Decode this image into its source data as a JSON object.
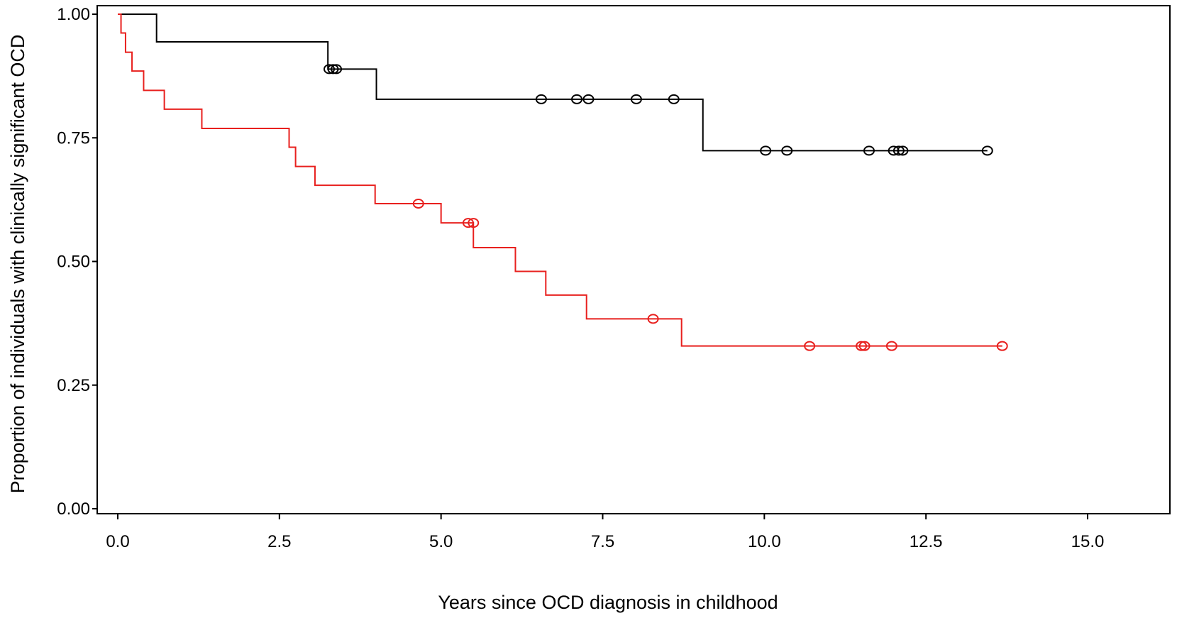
{
  "chart_data": {
    "type": "line",
    "title": "",
    "xlabel": "Years since OCD diagnosis in childhood",
    "ylabel": "Proportion of individuals with clinically significant OCD",
    "xlim": [
      0,
      15
    ],
    "ylim": [
      0,
      1
    ],
    "x_ticks": [
      0,
      2.5,
      5,
      7.5,
      10,
      12.5,
      15
    ],
    "x_tick_labels": [
      "0.0",
      "2.5",
      "5.0",
      "7.5",
      "10.0",
      "12.5",
      "15.0"
    ],
    "y_ticks": [
      0,
      0.25,
      0.5,
      0.75,
      1
    ],
    "y_tick_labels": [
      "0.00",
      "0.25",
      "0.50",
      "0.75",
      "1.00"
    ],
    "grid": false,
    "legend": "none",
    "series": [
      {
        "color": "#000000",
        "steps": [
          [
            0,
            1.0
          ],
          [
            0.6,
            0.944
          ],
          [
            3.25,
            0.889
          ],
          [
            4.0,
            0.828
          ],
          [
            9.05,
            0.724
          ],
          [
            13.45,
            0.724
          ]
        ],
        "censored": [
          [
            3.27,
            0.889
          ],
          [
            3.33,
            0.889
          ],
          [
            3.38,
            0.889
          ],
          [
            6.55,
            0.828
          ],
          [
            7.1,
            0.828
          ],
          [
            7.28,
            0.828
          ],
          [
            8.02,
            0.828
          ],
          [
            8.6,
            0.828
          ],
          [
            10.02,
            0.724
          ],
          [
            10.35,
            0.724
          ],
          [
            11.62,
            0.724
          ],
          [
            12.0,
            0.724
          ],
          [
            12.08,
            0.724
          ],
          [
            12.14,
            0.724
          ],
          [
            13.45,
            0.724
          ]
        ]
      },
      {
        "color": "#e8201e",
        "steps": [
          [
            0,
            1.0
          ],
          [
            0.05,
            0.962
          ],
          [
            0.12,
            0.923
          ],
          [
            0.22,
            0.885
          ],
          [
            0.4,
            0.846
          ],
          [
            0.72,
            0.808
          ],
          [
            1.3,
            0.769
          ],
          [
            2.65,
            0.731
          ],
          [
            2.75,
            0.692
          ],
          [
            3.05,
            0.654
          ],
          [
            3.98,
            0.617
          ],
          [
            5.0,
            0.578
          ],
          [
            5.5,
            0.528
          ],
          [
            6.15,
            0.48
          ],
          [
            6.62,
            0.432
          ],
          [
            7.25,
            0.384
          ],
          [
            8.72,
            0.329
          ],
          [
            13.68,
            0.329
          ]
        ],
        "censored": [
          [
            4.65,
            0.617
          ],
          [
            5.42,
            0.578
          ],
          [
            5.5,
            0.578
          ],
          [
            8.28,
            0.384
          ],
          [
            10.7,
            0.329
          ],
          [
            11.5,
            0.329
          ],
          [
            11.55,
            0.329
          ],
          [
            11.97,
            0.329
          ],
          [
            13.68,
            0.329
          ]
        ]
      }
    ]
  }
}
